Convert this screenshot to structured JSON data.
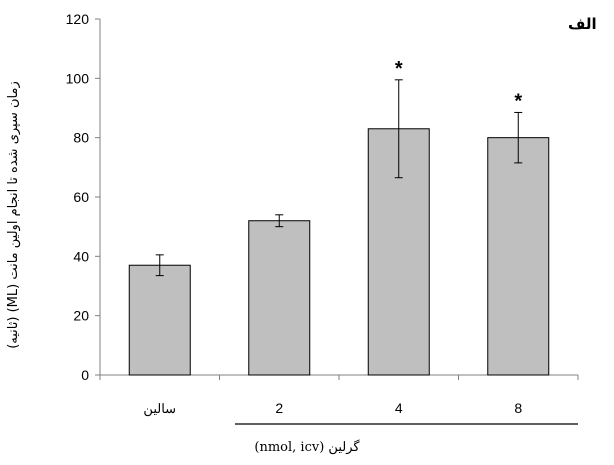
{
  "chart_data": {
    "type": "bar",
    "panel_label": "الف",
    "categories": [
      "سالین",
      "2",
      "4",
      "8"
    ],
    "values": [
      37,
      52,
      83,
      80
    ],
    "error_bars": [
      3.5,
      2,
      16.5,
      8.5
    ],
    "significance": [
      "",
      "",
      "*",
      "*"
    ],
    "xlabel": "گرلین (nmol, icv)",
    "ylabel": "زمان سپری شده تا انجام اولین مانت (ML) (ثانیه)",
    "ylim": [
      0,
      120
    ],
    "yticks": [
      "0",
      "20",
      "40",
      "60",
      "80",
      "100",
      "120"
    ],
    "bar_color": "#bfbfbf",
    "grid": false
  }
}
